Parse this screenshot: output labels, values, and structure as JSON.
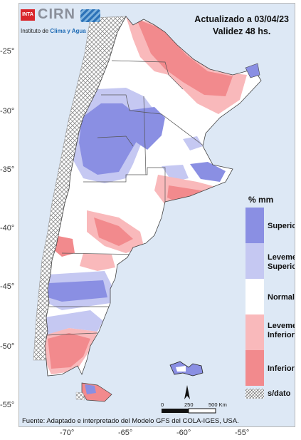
{
  "logo": {
    "inta": "INTA",
    "cirn": "CIRN",
    "subtitle_prefix": "Instituto de ",
    "subtitle_accent": "Clima y Agua"
  },
  "header": {
    "updated": "Actualizado a 03/04/23",
    "validity": "Validez 48 hs."
  },
  "axes": {
    "lat_labels": [
      "-25°",
      "-30°",
      "-35°",
      "-40°",
      "-45°",
      "-50°",
      "-55°"
    ],
    "lon_labels": [
      "-70°",
      "-65°",
      "-60°",
      "-55°"
    ]
  },
  "legend": {
    "title": "% mm",
    "items": [
      {
        "label": "Superior",
        "color": "#8a8fe3"
      },
      {
        "label": "Levemente Superior",
        "color": "#c5c8f2"
      },
      {
        "label": "Normal",
        "color": "#ffffff"
      },
      {
        "label": "Levemente Inferior",
        "color": "#f9b9bb"
      },
      {
        "label": "Inferior",
        "color": "#f28a8d"
      }
    ],
    "nodata_label": "s/dato"
  },
  "scale": {
    "labels": [
      "0",
      "250",
      "500 Km"
    ]
  },
  "source": "Fuente: Adaptado e interpretado del Modelo GFS del COLA-IGES, USA.",
  "colors": {
    "superior": "#8a8fe3",
    "lev_superior": "#c5c8f2",
    "normal": "#ffffff",
    "lev_inferior": "#f9b9bb",
    "inferior": "#f28a8d",
    "sea": "#dde8f5"
  }
}
